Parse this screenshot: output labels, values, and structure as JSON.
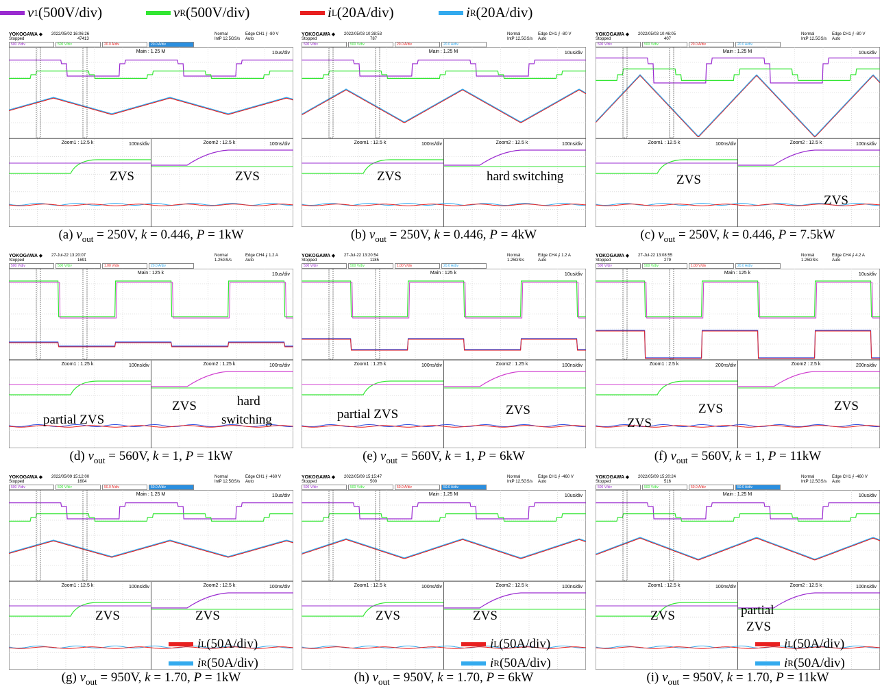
{
  "legend": [
    {
      "sym": "v",
      "sub": "1",
      "rest": " (500V/div)",
      "color": "#9a2bd0"
    },
    {
      "sym": "v",
      "sub": "R",
      "rest": " (500V/div)",
      "color": "#33e633"
    },
    {
      "sym": "i",
      "sub": "L",
      "rest": " (20A/div)",
      "color": "#e82020"
    },
    {
      "sym": "i",
      "sub": "R",
      "rest": " (20A/div)",
      "color": "#33aaee"
    }
  ],
  "panels": [
    {
      "id": "a",
      "brand": "YOKOGAWA ◆",
      "date": "2022/05/02 16:06:26",
      "status": "Stopped",
      "count": "47413",
      "mode": "Normal",
      "rate": "IntP 12.5GS/s",
      "trig": "Edge CH1 ⨍ -80 V",
      "trig2": "Auto",
      "ch": [
        "500 V/div",
        "500 V/div",
        "20.0 A/div",
        "20.0 A/div"
      ],
      "main": "Main : 1.25 M",
      "top_div": "10us/div",
      "zoom1": "Zoom1 : 12.5 k",
      "zoom2": "Zoom2 : 12.5 k",
      "bot_div1": "100ns/div",
      "bot_div2": "100ns/div",
      "pre": "(a) ",
      "vout": "250V",
      "k": "0.446",
      "P": "1kW",
      "ann": [
        "ZVS",
        "ZVS"
      ]
    },
    {
      "id": "b",
      "brand": "YOKOGAWA ◆",
      "date": "2022/05/03 10:38:53",
      "status": "Stopped",
      "count": "787",
      "mode": "Normal",
      "rate": "IntP 12.5GS/s",
      "trig": "Edge CH1 ⨍ -80 V",
      "trig2": "Auto",
      "ch": [
        "500 V/div",
        "500 V/div",
        "20.0 A/div",
        "20.0 A/div"
      ],
      "main": "Main : 1.25 M",
      "top_div": "10us/div",
      "zoom1": "Zoom1 : 12.5 k",
      "zoom2": "Zoom2 : 12.5 k",
      "bot_div1": "100ns/div",
      "bot_div2": "100ns/div",
      "pre": "(b) ",
      "vout": "250V",
      "k": "0.446",
      "P": "4kW",
      "ann": [
        "ZVS",
        "hard switching"
      ]
    },
    {
      "id": "c",
      "brand": "YOKOGAWA ◆",
      "date": "2022/05/03 10:46:05",
      "status": "Stopped",
      "count": "407",
      "mode": "Normal",
      "rate": "IntP 12.5GS/s",
      "trig": "Edge CH1 ⨍ -80 V",
      "trig2": "Auto",
      "ch": [
        "500 V/div",
        "500 V/div",
        "20.0 A/div",
        "20.0 A/div"
      ],
      "main": "Main : 1.25 M",
      "top_div": "10us/div",
      "zoom1": "Zoom1 : 12.5 k",
      "zoom2": "Zoom2 : 12.5 k",
      "bot_div1": "100ns/div",
      "bot_div2": "100ns/div",
      "pre": "(c) ",
      "vout": "250V",
      "k": "0.446",
      "P": "7.5kW",
      "ann": [
        "ZVS",
        "ZVS"
      ]
    },
    {
      "id": "d",
      "brand": "YOKOGAWA ◆",
      "date": "27-Jul-22 13:20:07",
      "status": "Stopped",
      "count": "1691",
      "mode": "Normal",
      "rate": "1.25GS/s",
      "trig": "Edge CH4 ⨍ 1.2 A",
      "trig2": "Auto",
      "ch": [
        "500 V/div",
        "500 V/div",
        "1.00 V/div",
        "20.0 A/div"
      ],
      "main": "Main : 125 k",
      "top_div": "10us/div",
      "zoom1": "Zoom1 : 1.25 k",
      "zoom2": "Zoom2 : 1.25 k",
      "bot_div1": "100ns/div",
      "bot_div2": "100ns/div",
      "pre": "(d) ",
      "vout": "560V",
      "k": "1",
      "P": "1kW",
      "ann": [
        "partial ZVS",
        "ZVS",
        "hard",
        "switching"
      ]
    },
    {
      "id": "e",
      "brand": "YOKOGAWA ◆",
      "date": "27-Jul-22 13:20:54",
      "status": "Stopped",
      "count": "1185",
      "mode": "Normal",
      "rate": "1.25GS/s",
      "trig": "Edge CH4 ⨍ 1.2 A",
      "trig2": "Auto",
      "ch": [
        "500 V/div",
        "500 V/div",
        "1.00 V/div",
        "20.0 A/div"
      ],
      "main": "Main : 125 k",
      "top_div": "10us/div",
      "zoom1": "Zoom1 : 1.25 k",
      "zoom2": "Zoom2 : 1.25 k",
      "bot_div1": "100ns/div",
      "bot_div2": "100ns/div",
      "pre": "(e) ",
      "vout": "560V",
      "k": "1",
      "P": "6kW",
      "ann": [
        "partial ZVS",
        "ZVS"
      ]
    },
    {
      "id": "f",
      "brand": "YOKOGAWA ◆",
      "date": "27-Jul-22 13:08:55",
      "status": "Stopped",
      "count": "279",
      "mode": "Normal",
      "rate": "1.25GS/s",
      "trig": "Edge CH4 ⨍ 4.2 A",
      "trig2": "Auto",
      "ch": [
        "500 V/div",
        "500 V/div",
        "1.00 V/div",
        "20.0 A/div"
      ],
      "main": "Main : 125 k",
      "top_div": "10us/div",
      "zoom1": "Zoom1 : 2.5 k",
      "zoom2": "Zoom2 : 2.5 k",
      "bot_div1": "200ns/div",
      "bot_div2": "200ns/div",
      "pre": "(f) ",
      "vout": "560V",
      "k": "1",
      "P": "11kW",
      "ann": [
        "ZVS",
        "ZVS",
        "ZVS"
      ]
    },
    {
      "id": "g",
      "brand": "YOKOGAWA ◆",
      "date": "2022/05/09 15:12:00",
      "status": "Stopped",
      "count": "1604",
      "mode": "Normal",
      "rate": "IntP 12.5GS/s",
      "trig": "Edge CH1 ⨍ -460 V",
      "trig2": "Auto",
      "ch": [
        "500 V/div",
        "500 V/div",
        "50.0 A/div",
        "50.0 A/div"
      ],
      "main": "Main : 1.25 M",
      "top_div": "10us/div",
      "zoom1": "Zoom1 : 12.5 k",
      "zoom2": "Zoom2 : 12.5 k",
      "bot_div1": "100ns/div",
      "bot_div2": "100ns/div",
      "pre": "(g) ",
      "vout": "950V",
      "k": "1.70",
      "P": "1kW",
      "ann": [
        "ZVS",
        "ZVS"
      ]
    },
    {
      "id": "h",
      "brand": "YOKOGAWA ◆",
      "date": "2022/05/09 15:15:47",
      "status": "Stopped",
      "count": "500",
      "mode": "Normal",
      "rate": "IntP 12.5GS/s",
      "trig": "Edge CH1 ⨍ -460 V",
      "trig2": "Auto",
      "ch": [
        "500 V/div",
        "500 V/div",
        "50.0 A/div",
        "50.0 A/div"
      ],
      "main": "Main : 1.25 M",
      "top_div": "10us/div",
      "zoom1": "Zoom1 : 12.5 k",
      "zoom2": "Zoom2 : 12.5 k",
      "bot_div1": "100ns/div",
      "bot_div2": "100ns/div",
      "pre": "(h) ",
      "vout": "950V",
      "k": "1.70",
      "P": "6kW",
      "ann": [
        "ZVS",
        "ZVS"
      ]
    },
    {
      "id": "i",
      "brand": "YOKOGAWA ◆",
      "date": "2022/05/09 15:20:24",
      "status": "Stopped",
      "count": "516",
      "mode": "Normal",
      "rate": "IntP 12.5GS/s",
      "trig": "Edge CH1 ⨍ -460 V",
      "trig2": "Auto",
      "ch": [
        "500 V/div",
        "500 V/div",
        "50.0 A/div",
        "50.0 A/div"
      ],
      "main": "Main : 1.25 M",
      "top_div": "10us/div",
      "zoom1": "Zoom1 : 12.5 k",
      "zoom2": "Zoom2 : 12.5 k",
      "bot_div1": "100ns/div",
      "bot_div2": "100ns/div",
      "pre": "(i) ",
      "vout": "950V",
      "k": "1.70",
      "P": "11kW",
      "ann": [
        "ZVS",
        "partial",
        "ZVS"
      ]
    }
  ],
  "caption_vout_sym": "v",
  "caption_vout_sub": "out",
  "caption_k_sym": "k",
  "caption_p_sym": "P",
  "sub_legend": [
    {
      "sym": "i",
      "sub": "L",
      "rest": " (50A/div)",
      "color": "#e82020"
    },
    {
      "sym": "i",
      "sub": "R",
      "rest": " (50A/div)",
      "color": "#33aaee"
    }
  ]
}
